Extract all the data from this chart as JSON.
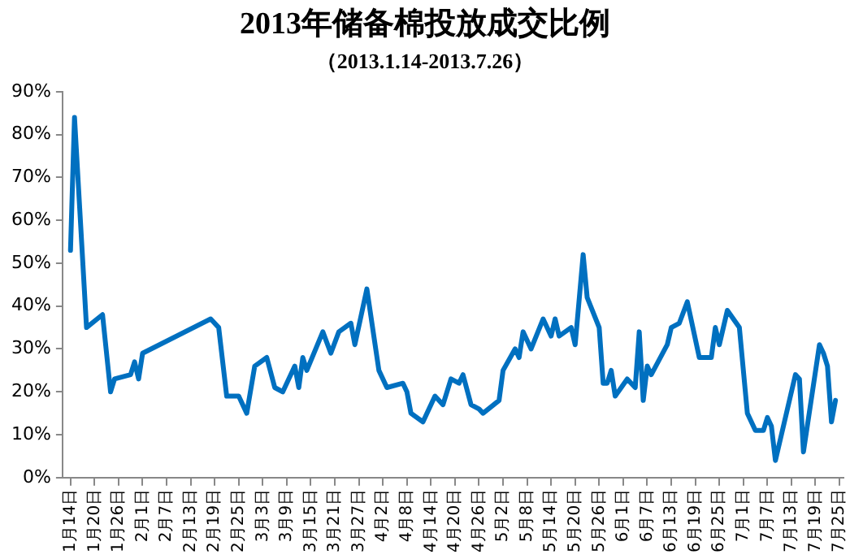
{
  "chart_data": {
    "type": "line",
    "title": "2013年储备棉投放成交比例",
    "subtitle": "（2013.1.14-2013.7.26）",
    "x": [
      "2013-01-14",
      "2013-01-15",
      "2013-01-18",
      "2013-01-22",
      "2013-01-24",
      "2013-01-25",
      "2013-01-29",
      "2013-01-30",
      "2013-01-31",
      "2013-02-01",
      "2013-02-18",
      "2013-02-20",
      "2013-02-22",
      "2013-02-25",
      "2013-02-27",
      "2013-03-01",
      "2013-03-04",
      "2013-03-06",
      "2013-03-08",
      "2013-03-11",
      "2013-03-12",
      "2013-03-13",
      "2013-03-14",
      "2013-03-18",
      "2013-03-20",
      "2013-03-22",
      "2013-03-25",
      "2013-03-26",
      "2013-03-29",
      "2013-04-01",
      "2013-04-03",
      "2013-04-07",
      "2013-04-08",
      "2013-04-09",
      "2013-04-12",
      "2013-04-15",
      "2013-04-17",
      "2013-04-19",
      "2013-04-21",
      "2013-04-22",
      "2013-04-24",
      "2013-04-26",
      "2013-04-27",
      "2013-05-01",
      "2013-05-02",
      "2013-05-05",
      "2013-05-06",
      "2013-05-07",
      "2013-05-09",
      "2013-05-12",
      "2013-05-14",
      "2013-05-15",
      "2013-05-16",
      "2013-05-19",
      "2013-05-20",
      "2013-05-22",
      "2013-05-23",
      "2013-05-26",
      "2013-05-27",
      "2013-05-28",
      "2013-05-29",
      "2013-05-30",
      "2013-06-02",
      "2013-06-04",
      "2013-06-05",
      "2013-06-06",
      "2013-06-07",
      "2013-06-08",
      "2013-06-12",
      "2013-06-13",
      "2013-06-15",
      "2013-06-17",
      "2013-06-20",
      "2013-06-23",
      "2013-06-24",
      "2013-06-25",
      "2013-06-27",
      "2013-06-30",
      "2013-07-02",
      "2013-07-04",
      "2013-07-06",
      "2013-07-07",
      "2013-07-08",
      "2013-07-09",
      "2013-07-10",
      "2013-07-14",
      "2013-07-15",
      "2013-07-16",
      "2013-07-20",
      "2013-07-21",
      "2013-07-22",
      "2013-07-23",
      "2013-07-24"
    ],
    "series": [
      {
        "color": "#0070c0",
        "values": [
          53,
          84,
          35,
          38,
          20,
          23,
          24,
          27,
          23,
          29,
          37,
          35,
          19,
          19,
          15,
          26,
          28,
          21,
          20,
          26,
          21,
          28,
          25,
          34,
          29,
          34,
          36,
          31,
          44,
          25,
          21,
          22,
          20,
          15,
          13,
          19,
          17,
          23,
          22,
          24,
          17,
          16,
          15,
          18,
          25,
          30,
          28,
          34,
          30,
          37,
          33,
          37,
          33,
          35,
          31,
          52,
          42,
          35,
          22,
          22,
          25,
          19,
          23,
          21,
          34,
          18,
          26,
          24,
          31,
          35,
          36,
          41,
          28,
          28,
          35,
          31,
          39,
          35,
          15,
          11,
          11,
          14,
          12,
          4,
          8,
          24,
          23,
          6,
          31,
          29,
          26,
          13,
          18
        ]
      }
    ],
    "xlim": [
      "2013-01-12",
      "2013-07-26"
    ],
    "xticks": [
      {
        "value": "2013-01-14",
        "label": "1月14日"
      },
      {
        "value": "2013-01-20",
        "label": "1月20日"
      },
      {
        "value": "2013-01-26",
        "label": "1月26日"
      },
      {
        "value": "2013-02-01",
        "label": "2月1日"
      },
      {
        "value": "2013-02-07",
        "label": "2月7日"
      },
      {
        "value": "2013-02-13",
        "label": "2月13日"
      },
      {
        "value": "2013-02-19",
        "label": "2月19日"
      },
      {
        "value": "2013-02-25",
        "label": "2月25日"
      },
      {
        "value": "2013-03-03",
        "label": "3月3日"
      },
      {
        "value": "2013-03-09",
        "label": "3月9日"
      },
      {
        "value": "2013-03-15",
        "label": "3月15日"
      },
      {
        "value": "2013-03-21",
        "label": "3月21日"
      },
      {
        "value": "2013-03-27",
        "label": "3月27日"
      },
      {
        "value": "2013-04-02",
        "label": "4月2日"
      },
      {
        "value": "2013-04-08",
        "label": "4月8日"
      },
      {
        "value": "2013-04-14",
        "label": "4月14日"
      },
      {
        "value": "2013-04-20",
        "label": "4月20日"
      },
      {
        "value": "2013-04-26",
        "label": "4月26日"
      },
      {
        "value": "2013-05-02",
        "label": "5月2日"
      },
      {
        "value": "2013-05-08",
        "label": "5月8日"
      },
      {
        "value": "2013-05-14",
        "label": "5月14日"
      },
      {
        "value": "2013-05-20",
        "label": "5月20日"
      },
      {
        "value": "2013-05-26",
        "label": "5月26日"
      },
      {
        "value": "2013-06-01",
        "label": "6月1日"
      },
      {
        "value": "2013-06-07",
        "label": "6月7日"
      },
      {
        "value": "2013-06-13",
        "label": "6月13日"
      },
      {
        "value": "2013-06-19",
        "label": "6月19日"
      },
      {
        "value": "2013-06-25",
        "label": "6月25日"
      },
      {
        "value": "2013-07-01",
        "label": "7月1日"
      },
      {
        "value": "2013-07-07",
        "label": "7月7日"
      },
      {
        "value": "2013-07-13",
        "label": "7月13日"
      },
      {
        "value": "2013-07-19",
        "label": "7月19日"
      },
      {
        "value": "2013-07-25",
        "label": "7月25日"
      }
    ],
    "ylim": [
      0,
      90
    ],
    "yticks": [
      {
        "value": 0,
        "label": "0%"
      },
      {
        "value": 10,
        "label": "10%"
      },
      {
        "value": 20,
        "label": "20%"
      },
      {
        "value": 30,
        "label": "30%"
      },
      {
        "value": 40,
        "label": "40%"
      },
      {
        "value": 50,
        "label": "50%"
      },
      {
        "value": 60,
        "label": "60%"
      },
      {
        "value": 70,
        "label": "70%"
      },
      {
        "value": 80,
        "label": "80%"
      },
      {
        "value": 90,
        "label": "90%"
      }
    ],
    "grid": false,
    "legend": false,
    "marker": "none",
    "line_style": "solid"
  }
}
